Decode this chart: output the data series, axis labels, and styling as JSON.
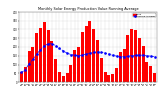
{
  "title": "Monthly Solar Energy Production Value Running Average",
  "bar_color": "#ff0000",
  "avg_color": "#0000ff",
  "background_color": "#ffffff",
  "plot_bg": "#ffffff",
  "grid_color": "#aaaaaa",
  "months": [
    "Jan\n08",
    "Feb\n08",
    "Mar\n08",
    "Apr\n08",
    "May\n08",
    "Jun\n08",
    "Jul\n08",
    "Aug\n08",
    "Sep\n08",
    "Oct\n08",
    "Nov\n08",
    "Dec\n08",
    "Jan\n09",
    "Feb\n09",
    "Mar\n09",
    "Apr\n09",
    "May\n09",
    "Jun\n09",
    "Jul\n09",
    "Aug\n09",
    "Sep\n09",
    "Oct\n09",
    "Nov\n09",
    "Dec\n09",
    "Jan\n10",
    "Feb\n10",
    "Mar\n10",
    "Apr\n10",
    "May\n10",
    "Jun\n10",
    "Jul\n10",
    "Aug\n10",
    "Sep\n10",
    "Oct\n10",
    "Nov\n10",
    "Dec\n10"
  ],
  "production": [
    55,
    85,
    175,
    200,
    280,
    310,
    340,
    295,
    235,
    130,
    55,
    35,
    50,
    95,
    185,
    200,
    285,
    320,
    350,
    305,
    240,
    140,
    60,
    40,
    45,
    80,
    170,
    190,
    270,
    300,
    295,
    250,
    205,
    115,
    90,
    50
  ],
  "running_avg": [
    55,
    70,
    105,
    129,
    160,
    184,
    206,
    218,
    219,
    208,
    192,
    178,
    165,
    157,
    153,
    151,
    154,
    159,
    164,
    169,
    172,
    170,
    165,
    159,
    153,
    148,
    145,
    144,
    147,
    151,
    153,
    154,
    153,
    149,
    148,
    145
  ],
  "ylim": [
    0,
    400
  ],
  "ytick_vals": [
    0,
    50,
    100,
    150,
    200,
    250,
    300,
    350,
    400
  ],
  "ytick_labels": [
    "0",
    "50",
    "100",
    "150",
    "200",
    "250",
    "300",
    "350",
    "400"
  ],
  "legend_labels": [
    "Value",
    "Running Average"
  ],
  "title_fontsize": 2.5,
  "tick_fontsize": 1.8,
  "legend_fontsize": 1.6
}
